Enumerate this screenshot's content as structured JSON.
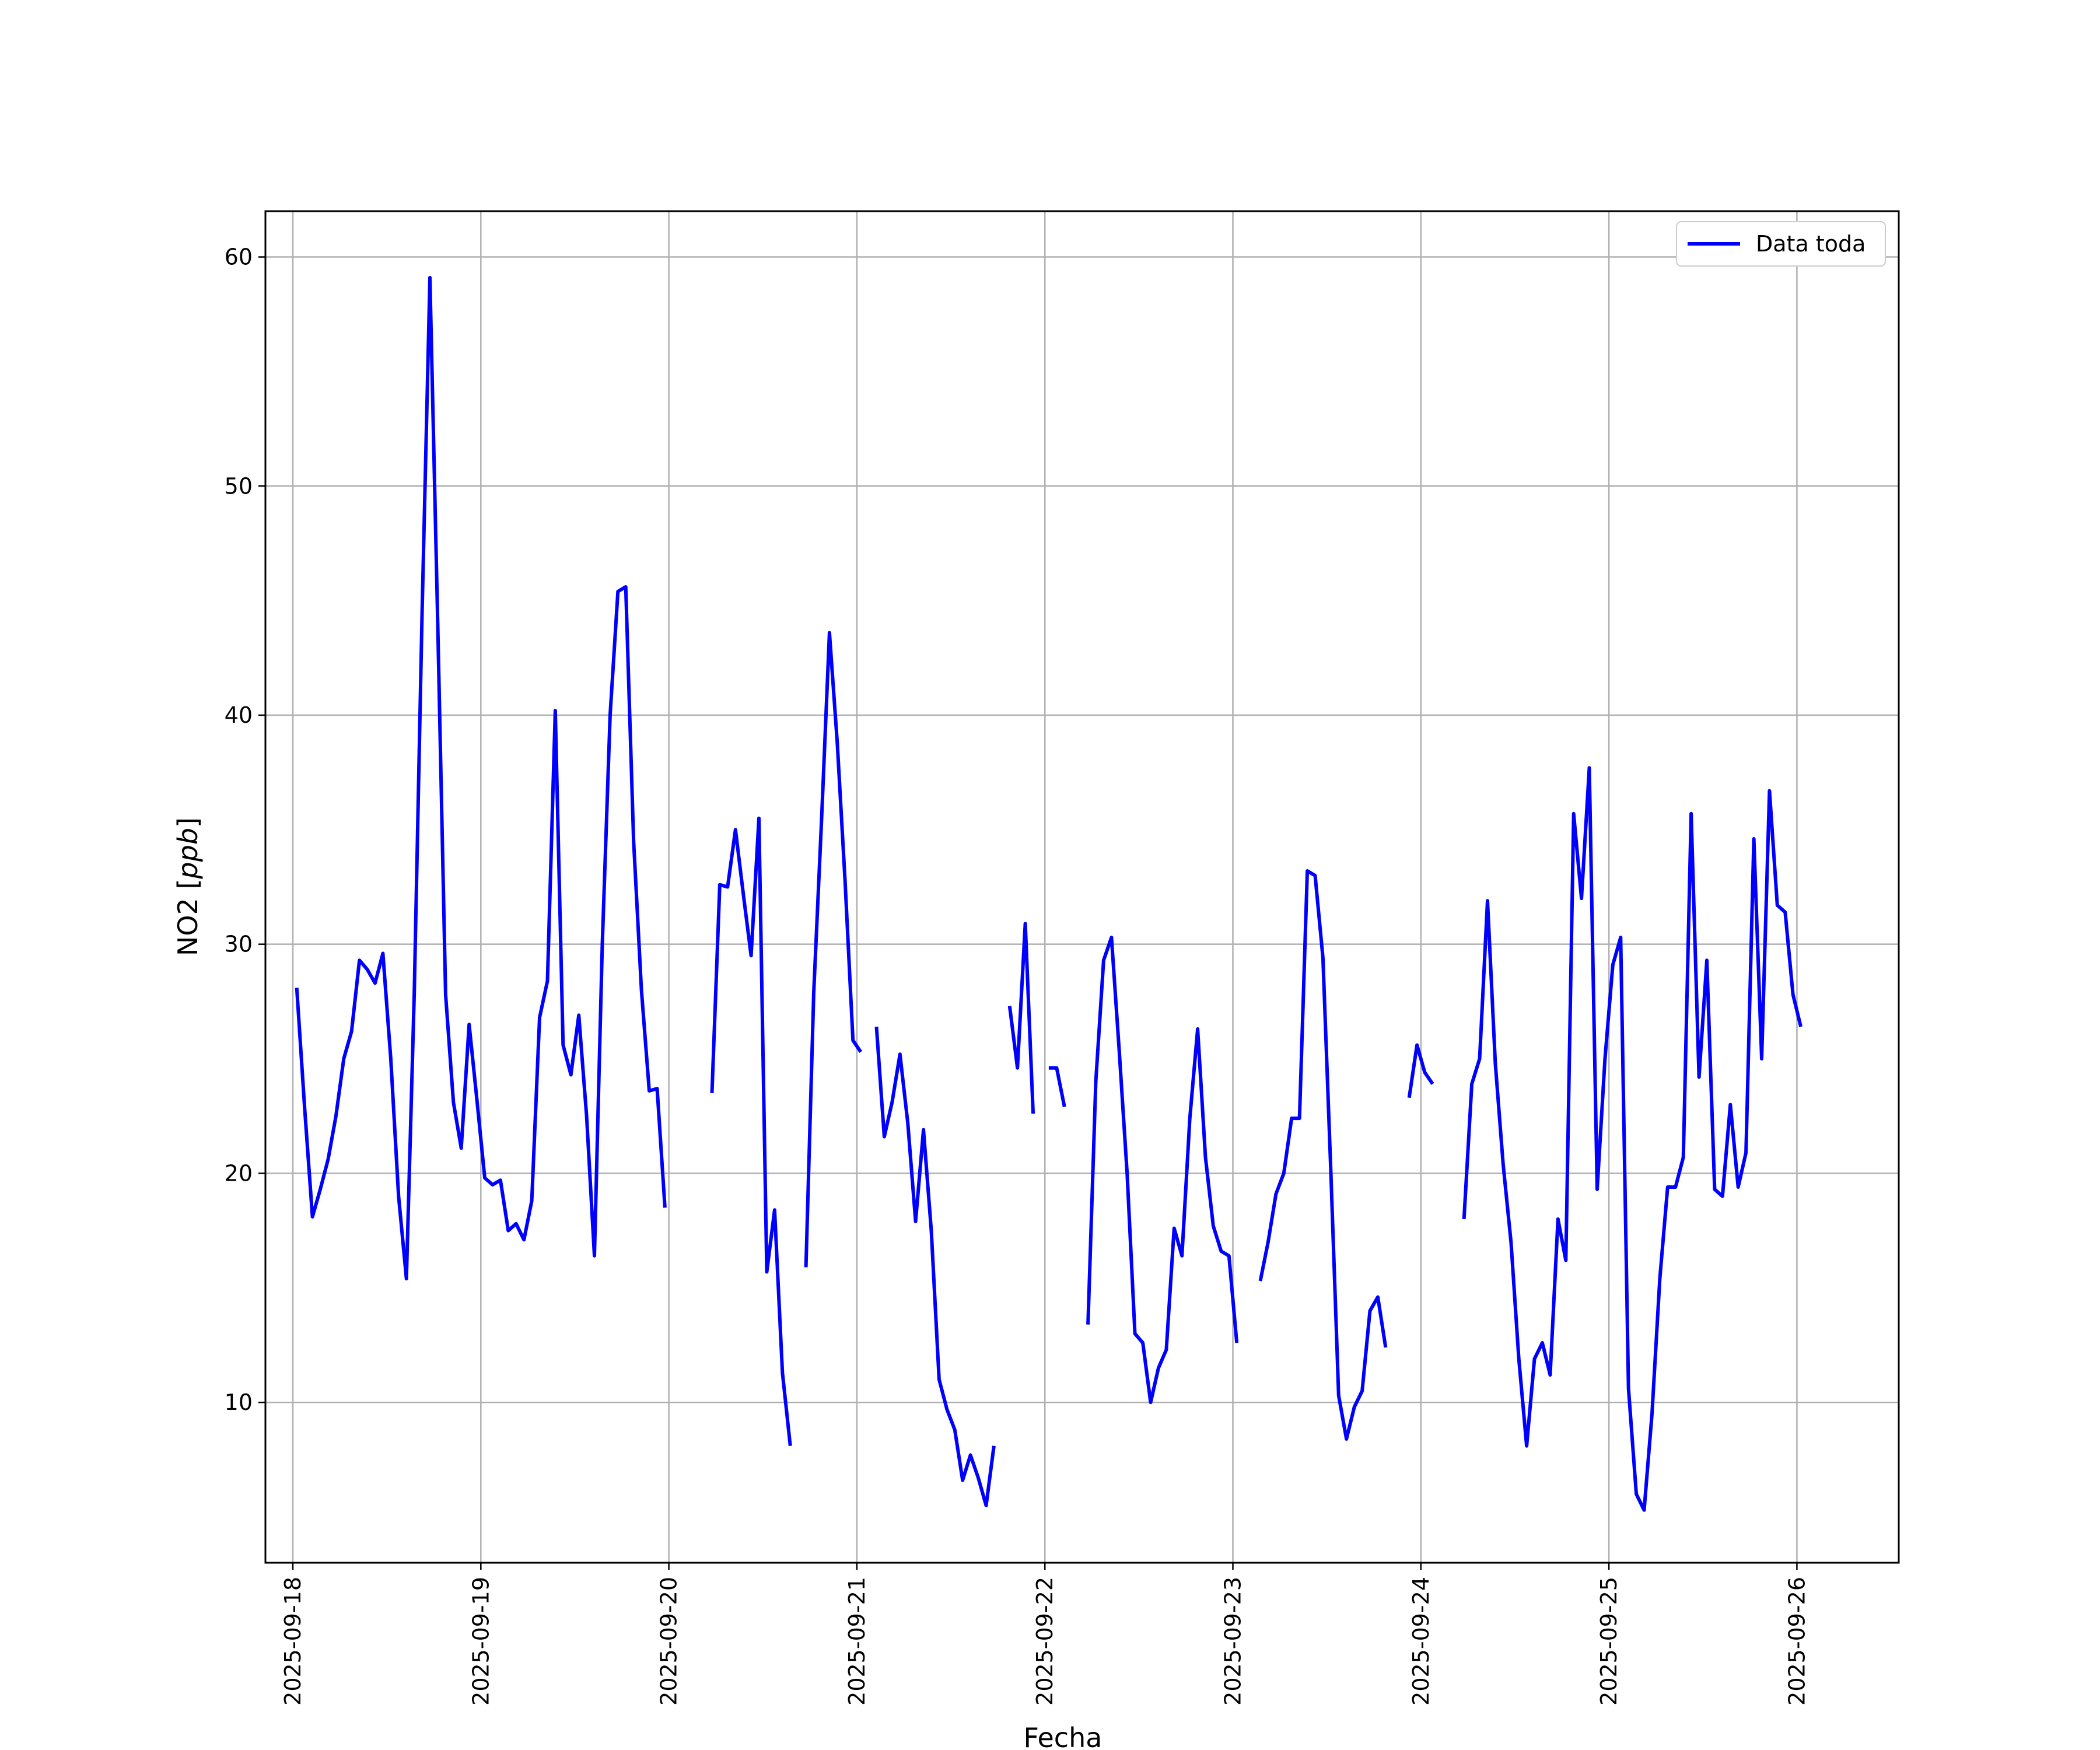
{
  "chart_data": {
    "type": "line",
    "xlabel": "Fecha",
    "ylabel_main": "NO2 [",
    "ylabel_unit": "ppb",
    "ylabel_end": "]",
    "grid": true,
    "legend_position": "top-right",
    "line_color": "#0000ff",
    "xlim": [
      "2025-09-17T20:30",
      "2025-09-26T13:00"
    ],
    "ylim": [
      3.0,
      62.0
    ],
    "x_ticks": [
      "2025-09-18",
      "2025-09-19",
      "2025-09-20",
      "2025-09-21",
      "2025-09-22",
      "2025-09-23",
      "2025-09-24",
      "2025-09-25",
      "2025-09-26"
    ],
    "y_ticks": [
      10,
      20,
      30,
      40,
      50,
      60
    ],
    "series": [
      {
        "name": "Data toda",
        "segments": [
          [
            [
              "2025-09-18T00:30",
              28.1
            ],
            [
              "2025-09-18T01:30",
              22.9
            ],
            [
              "2025-09-18T02:30",
              18.1
            ],
            [
              "2025-09-18T03:30",
              19.3
            ],
            [
              "2025-09-18T04:30",
              20.6
            ],
            [
              "2025-09-18T05:30",
              22.5
            ],
            [
              "2025-09-18T06:30",
              25.0
            ],
            [
              "2025-09-18T07:30",
              26.2
            ],
            [
              "2025-09-18T08:30",
              29.3
            ],
            [
              "2025-09-18T09:30",
              28.9
            ],
            [
              "2025-09-18T10:30",
              28.3
            ],
            [
              "2025-09-18T11:30",
              29.6
            ],
            [
              "2025-09-18T12:30",
              25.0
            ],
            [
              "2025-09-18T13:30",
              19.0
            ],
            [
              "2025-09-18T14:30",
              15.4
            ],
            [
              "2025-09-18T15:30",
              27.9
            ],
            [
              "2025-09-18T16:30",
              44.5
            ],
            [
              "2025-09-18T17:30",
              59.1
            ],
            [
              "2025-09-18T18:30",
              44.0
            ],
            [
              "2025-09-18T19:30",
              27.8
            ],
            [
              "2025-09-18T20:30",
              23.1
            ],
            [
              "2025-09-18T21:30",
              21.1
            ],
            [
              "2025-09-18T22:30",
              26.5
            ],
            [
              "2025-09-18T23:30",
              23.2
            ],
            [
              "2025-09-19T00:30",
              19.8
            ],
            [
              "2025-09-19T01:30",
              19.5
            ],
            [
              "2025-09-19T02:30",
              19.7
            ],
            [
              "2025-09-19T03:30",
              17.5
            ],
            [
              "2025-09-19T04:30",
              17.8
            ],
            [
              "2025-09-19T05:30",
              17.1
            ],
            [
              "2025-09-19T06:30",
              18.8
            ],
            [
              "2025-09-19T07:30",
              26.8
            ],
            [
              "2025-09-19T08:30",
              28.4
            ],
            [
              "2025-09-19T09:30",
              40.2
            ],
            [
              "2025-09-19T10:30",
              25.6
            ],
            [
              "2025-09-19T11:30",
              24.3
            ],
            [
              "2025-09-19T12:30",
              26.9
            ],
            [
              "2025-09-19T13:30",
              22.5
            ],
            [
              "2025-09-19T14:30",
              16.4
            ],
            [
              "2025-09-19T15:30",
              30.0
            ],
            [
              "2025-09-19T16:30",
              40.0
            ],
            [
              "2025-09-19T17:30",
              45.4
            ],
            [
              "2025-09-19T18:30",
              45.6
            ],
            [
              "2025-09-19T19:30",
              34.5
            ],
            [
              "2025-09-19T20:30",
              28.0
            ],
            [
              "2025-09-19T21:30",
              23.6
            ],
            [
              "2025-09-19T22:30",
              23.7
            ],
            [
              "2025-09-19T23:30",
              18.5
            ]
          ],
          [
            [
              "2025-09-20T05:30",
              23.5
            ],
            [
              "2025-09-20T06:30",
              32.6
            ],
            [
              "2025-09-20T07:30",
              32.5
            ],
            [
              "2025-09-20T08:30",
              35.0
            ],
            [
              "2025-09-20T09:30",
              32.2
            ],
            [
              "2025-09-20T10:30",
              29.5
            ],
            [
              "2025-09-20T11:30",
              35.5
            ],
            [
              "2025-09-20T12:30",
              15.7
            ],
            [
              "2025-09-20T13:30",
              18.4
            ],
            [
              "2025-09-20T14:30",
              11.3
            ],
            [
              "2025-09-20T15:30",
              8.1
            ]
          ],
          [
            [
              "2025-09-20T17:30",
              15.9
            ],
            [
              "2025-09-20T18:30",
              27.9
            ],
            [
              "2025-09-20T19:30",
              35.5
            ],
            [
              "2025-09-20T20:30",
              43.6
            ],
            [
              "2025-09-20T21:30",
              38.8
            ],
            [
              "2025-09-20T22:30",
              32.7
            ],
            [
              "2025-09-20T23:30",
              25.8
            ],
            [
              "2025-09-21T00:30",
              25.3
            ]
          ],
          [
            [
              "2025-09-21T02:30",
              26.4
            ],
            [
              "2025-09-21T03:30",
              21.6
            ],
            [
              "2025-09-21T04:30",
              23.1
            ],
            [
              "2025-09-21T05:30",
              25.2
            ],
            [
              "2025-09-21T06:30",
              22.2
            ],
            [
              "2025-09-21T07:30",
              17.9
            ],
            [
              "2025-09-21T08:30",
              21.9
            ],
            [
              "2025-09-21T09:30",
              17.5
            ],
            [
              "2025-09-21T10:30",
              11.0
            ],
            [
              "2025-09-21T11:30",
              9.7
            ],
            [
              "2025-09-21T12:30",
              8.8
            ],
            [
              "2025-09-21T13:30",
              6.6
            ],
            [
              "2025-09-21T14:30",
              7.7
            ],
            [
              "2025-09-21T15:30",
              6.7
            ],
            [
              "2025-09-21T16:30",
              5.5
            ],
            [
              "2025-09-21T17:30",
              8.1
            ]
          ],
          [
            [
              "2025-09-21T19:30",
              27.3
            ],
            [
              "2025-09-21T20:30",
              24.6
            ],
            [
              "2025-09-21T21:30",
              30.9
            ],
            [
              "2025-09-21T22:30",
              22.6
            ]
          ],
          [
            [
              "2025-09-22T00:30",
              24.6
            ],
            [
              "2025-09-22T01:30",
              24.6
            ],
            [
              "2025-09-22T02:30",
              22.9
            ]
          ],
          [
            [
              "2025-09-22T05:30",
              13.4
            ],
            [
              "2025-09-22T06:30",
              24.0
            ],
            [
              "2025-09-22T07:30",
              29.3
            ],
            [
              "2025-09-22T08:30",
              30.3
            ],
            [
              "2025-09-22T09:30",
              25.3
            ],
            [
              "2025-09-22T10:30",
              20.0
            ],
            [
              "2025-09-22T11:30",
              13.0
            ],
            [
              "2025-09-22T12:30",
              12.6
            ],
            [
              "2025-09-22T13:30",
              10.0
            ],
            [
              "2025-09-22T14:30",
              11.5
            ],
            [
              "2025-09-22T15:30",
              12.3
            ],
            [
              "2025-09-22T16:30",
              17.6
            ],
            [
              "2025-09-22T17:30",
              16.4
            ],
            [
              "2025-09-22T18:30",
              22.4
            ],
            [
              "2025-09-22T19:30",
              26.3
            ],
            [
              "2025-09-22T20:30",
              20.7
            ],
            [
              "2025-09-22T21:30",
              17.7
            ],
            [
              "2025-09-22T22:30",
              16.6
            ],
            [
              "2025-09-22T23:30",
              16.4
            ],
            [
              "2025-09-23T00:30",
              12.6
            ]
          ],
          [
            [
              "2025-09-23T03:30",
              15.3
            ],
            [
              "2025-09-23T04:30",
              17.0
            ],
            [
              "2025-09-23T05:30",
              19.1
            ],
            [
              "2025-09-23T06:30",
              20.0
            ],
            [
              "2025-09-23T07:30",
              22.4
            ],
            [
              "2025-09-23T08:30",
              22.4
            ],
            [
              "2025-09-23T09:30",
              33.2
            ],
            [
              "2025-09-23T10:30",
              33.0
            ],
            [
              "2025-09-23T11:30",
              29.4
            ],
            [
              "2025-09-23T12:30",
              20.1
            ],
            [
              "2025-09-23T13:30",
              10.3
            ],
            [
              "2025-09-23T14:30",
              8.4
            ],
            [
              "2025-09-23T15:30",
              9.8
            ],
            [
              "2025-09-23T16:30",
              10.5
            ],
            [
              "2025-09-23T17:30",
              14.0
            ],
            [
              "2025-09-23T18:30",
              14.6
            ],
            [
              "2025-09-23T19:30",
              12.4
            ]
          ],
          [
            [
              "2025-09-23T22:30",
              23.3
            ],
            [
              "2025-09-23T23:30",
              25.6
            ],
            [
              "2025-09-24T00:30",
              24.4
            ],
            [
              "2025-09-24T01:30",
              23.9
            ]
          ],
          [
            [
              "2025-09-24T05:30",
              18.0
            ],
            [
              "2025-09-24T06:30",
              23.9
            ],
            [
              "2025-09-24T07:30",
              25.0
            ],
            [
              "2025-09-24T08:30",
              31.9
            ],
            [
              "2025-09-24T09:30",
              24.8
            ],
            [
              "2025-09-24T10:30",
              20.4
            ],
            [
              "2025-09-24T11:30",
              17.0
            ],
            [
              "2025-09-24T12:30",
              11.9
            ],
            [
              "2025-09-24T13:30",
              8.1
            ],
            [
              "2025-09-24T14:30",
              11.9
            ],
            [
              "2025-09-24T15:30",
              12.6
            ],
            [
              "2025-09-24T16:30",
              11.2
            ],
            [
              "2025-09-24T17:30",
              18.0
            ],
            [
              "2025-09-24T18:30",
              16.2
            ],
            [
              "2025-09-24T19:30",
              35.7
            ],
            [
              "2025-09-24T20:30",
              32.0
            ],
            [
              "2025-09-24T21:30",
              37.7
            ],
            [
              "2025-09-24T22:30",
              19.3
            ],
            [
              "2025-09-24T23:30",
              25.0
            ],
            [
              "2025-09-25T00:30",
              29.1
            ],
            [
              "2025-09-25T01:30",
              30.3
            ],
            [
              "2025-09-25T02:30",
              10.6
            ],
            [
              "2025-09-25T03:30",
              6.0
            ],
            [
              "2025-09-25T04:30",
              5.3
            ],
            [
              "2025-09-25T05:30",
              9.5
            ],
            [
              "2025-09-25T06:30",
              15.4
            ],
            [
              "2025-09-25T07:30",
              19.4
            ],
            [
              "2025-09-25T08:30",
              19.4
            ],
            [
              "2025-09-25T09:30",
              20.7
            ],
            [
              "2025-09-25T10:30",
              35.7
            ],
            [
              "2025-09-25T11:30",
              24.2
            ],
            [
              "2025-09-25T12:30",
              29.3
            ],
            [
              "2025-09-25T13:30",
              19.3
            ],
            [
              "2025-09-25T14:30",
              19.0
            ],
            [
              "2025-09-25T15:30",
              23.0
            ],
            [
              "2025-09-25T16:30",
              19.4
            ],
            [
              "2025-09-25T17:30",
              20.9
            ],
            [
              "2025-09-25T18:30",
              34.6
            ],
            [
              "2025-09-25T19:30",
              25.0
            ],
            [
              "2025-09-25T20:30",
              36.7
            ],
            [
              "2025-09-25T21:30",
              31.7
            ],
            [
              "2025-09-25T22:30",
              31.4
            ],
            [
              "2025-09-25T23:30",
              27.8
            ],
            [
              "2025-09-26T00:30",
              26.4
            ]
          ]
        ]
      }
    ]
  }
}
